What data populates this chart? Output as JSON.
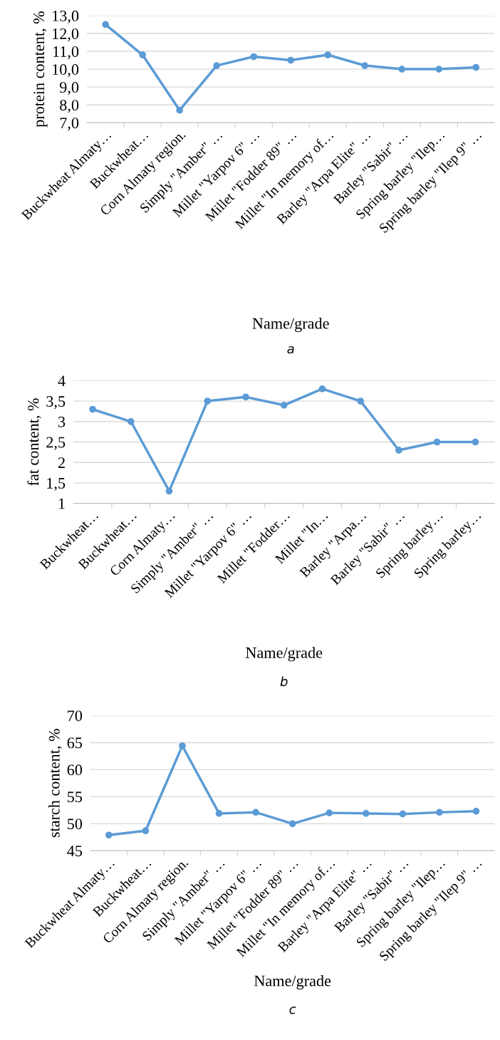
{
  "chart_data": [
    {
      "type": "line",
      "xlabel": "Name/grade",
      "ylabel": "protein content, %",
      "annotations": [
        "a"
      ],
      "color": "#5b9bd5",
      "marker": "circle",
      "grid": "y",
      "categories": [
        "Buckwheat Almaty…",
        "Buckwheat…",
        "Corn Almaty region.",
        "Simply \"Amber\" …",
        "Millet \"Yarpov 6\" …",
        "Millet \"Fodder 89\" …",
        "Millet \"In memory of…",
        "Barley \"Arpa Elite\" …",
        "Barley \"Sabir\" …",
        "Spring barley \"Ilep…",
        "Spring barley \"Ilep 9\" …"
      ],
      "values": [
        12.5,
        10.8,
        7.7,
        10.2,
        10.7,
        10.5,
        10.8,
        10.2,
        10.0,
        10.0,
        10.1
      ],
      "ylim": [
        7,
        13
      ],
      "yticks": [
        {
          "value": 7,
          "label": "7,0"
        },
        {
          "value": 8,
          "label": "8,0"
        },
        {
          "value": 9,
          "label": "9,0"
        },
        {
          "value": 10,
          "label": "10,0"
        },
        {
          "value": 11,
          "label": "11,0"
        },
        {
          "value": 12,
          "label": "12,0"
        },
        {
          "value": 13,
          "label": "13,0"
        }
      ]
    },
    {
      "type": "line",
      "xlabel": "Name/grade",
      "ylabel": "fat content, %",
      "annotations": [
        "b"
      ],
      "color": "#5b9bd5",
      "marker": "circle",
      "grid": "y",
      "categories": [
        "Buckwheat…",
        "Buckwheat…",
        "Corn Almaty…",
        "Simply \"Amber\" …",
        "Millet \"Yarpov 6\" …",
        "Millet \"Fodder…",
        "Millet \"In…",
        "Barley \"Arpa…",
        "Barley \"Sabir\" …",
        "Spring barley…",
        "Spring barley…"
      ],
      "values": [
        3.3,
        3.0,
        1.3,
        3.5,
        3.6,
        3.4,
        3.8,
        3.5,
        2.3,
        2.5,
        2.5
      ],
      "ylim": [
        1,
        4
      ],
      "yticks": [
        1,
        {
          "value": 1.5,
          "label": "1,5"
        },
        2,
        {
          "value": 2.5,
          "label": "2,5"
        },
        3,
        {
          "value": 3.5,
          "label": "3,5"
        },
        4
      ]
    },
    {
      "type": "line",
      "xlabel": "Name/grade",
      "ylabel": "starch content, %",
      "annotations": [
        "c"
      ],
      "color": "#5b9bd5",
      "marker": "circle",
      "grid": "y",
      "categories": [
        "Buckwheat Almaty…",
        "Buckwheat…",
        "Corn Almaty region.",
        "Simply \"Amber\" …",
        "Millet \"Yarpov 6\" …",
        "Millet \"Fodder 89\" …",
        "Millet \"In memory of…",
        "Barley \"Arpa Elite\" …",
        "Barley \"Sabir\" …",
        "Spring barley \"Ilep…",
        "Spring barley \"Ilep 9\" …"
      ],
      "values": [
        47.9,
        48.7,
        64.4,
        51.9,
        52.1,
        50.0,
        52.0,
        51.9,
        51.8,
        52.1,
        52.3
      ],
      "ylim": [
        45,
        70
      ],
      "yticks": [
        45,
        50,
        55,
        60,
        65,
        70
      ]
    }
  ]
}
